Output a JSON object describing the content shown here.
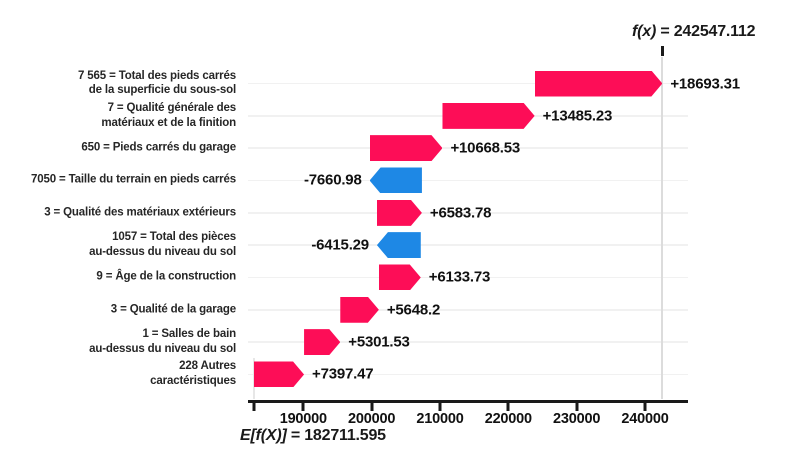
{
  "chart_data": {
    "type": "waterfall",
    "final": {
      "value": 242547.112,
      "label_prefix": "f(x)",
      "label_suffix": " = 242547.112"
    },
    "base": {
      "value": 182711.595,
      "label_prefix": "E[f(X)]",
      "label_suffix": " = 182711.595"
    },
    "x_ticks": [
      190000,
      200000,
      210000,
      220000,
      230000,
      240000
    ],
    "features": [
      {
        "label_lines": [
          "7 565 = Total des pieds carrés",
          "de la superficie du sous-sol"
        ],
        "value": 18693.31,
        "value_label": "+18693.31"
      },
      {
        "label_lines": [
          "7 = Qualité générale des",
          "matériaux et de la finition"
        ],
        "value": 13485.23,
        "value_label": "+13485.23"
      },
      {
        "label_lines": [
          "650 = Pieds carrés du garage"
        ],
        "value": 10668.53,
        "value_label": "+10668.53"
      },
      {
        "label_lines": [
          "7050 = Taille du terrain en pieds carrés"
        ],
        "value": -7660.98,
        "value_label": "-7660.98"
      },
      {
        "label_lines": [
          "3 = Qualité des matériaux extérieurs"
        ],
        "value": 6583.78,
        "value_label": "+6583.78"
      },
      {
        "label_lines": [
          "1057 = Total des pièces",
          "au-dessus du niveau du sol"
        ],
        "value": -6415.29,
        "value_label": "-6415.29"
      },
      {
        "label_lines": [
          "9 = Âge de la construction"
        ],
        "value": 6133.73,
        "value_label": "+6133.73"
      },
      {
        "label_lines": [
          "3 = Qualité de la garage"
        ],
        "value": 5648.2,
        "value_label": "+5648.2"
      },
      {
        "label_lines": [
          "1 = Salles de bain",
          "au-dessus du niveau du sol"
        ],
        "value": 5301.53,
        "value_label": "+5301.53"
      },
      {
        "label_lines": [
          "228 Autres",
          "caractéristiques"
        ],
        "value": 7397.47,
        "value_label": "+7397.47"
      }
    ],
    "colors": {
      "positive": "#fd0d57",
      "negative": "#1e88e5",
      "axis": "#1a1a1a",
      "gridline": "#f1f1f1",
      "fx_line": "#dcdcdc"
    }
  }
}
